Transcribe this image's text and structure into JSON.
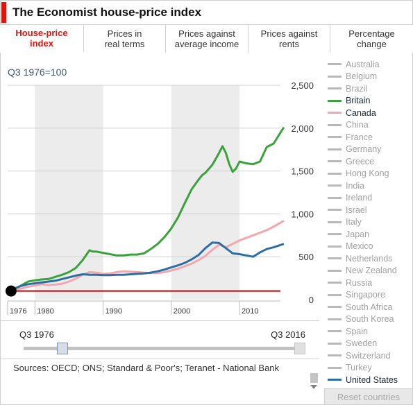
{
  "header": {
    "title": "The Economist house-price index"
  },
  "tabs": [
    {
      "label": "House-price\nindex",
      "active": true
    },
    {
      "label": "Prices in\nreal terms",
      "active": false
    },
    {
      "label": "Prices against\naverage income",
      "active": false
    },
    {
      "label": "Prices against\nrents",
      "active": false
    },
    {
      "label": "Percentage\nchange",
      "active": false
    }
  ],
  "subtitle": "Q3 1976=100",
  "slider": {
    "start_label": "Q3 1976",
    "end_label": "Q3 2016"
  },
  "sources": "Sources: OECD; ONS; Standard & Poor's; Teranet - National Bank",
  "reset_label": "Reset countries",
  "legend": [
    {
      "name": "Australia",
      "on": false
    },
    {
      "name": "Belgium",
      "on": false
    },
    {
      "name": "Brazil",
      "on": false
    },
    {
      "name": "Britain",
      "on": true
    },
    {
      "name": "Canada",
      "on": true
    },
    {
      "name": "China",
      "on": false
    },
    {
      "name": "France",
      "on": false
    },
    {
      "name": "Germany",
      "on": false
    },
    {
      "name": "Greece",
      "on": false
    },
    {
      "name": "Hong Kong",
      "on": false
    },
    {
      "name": "India",
      "on": false
    },
    {
      "name": "Ireland",
      "on": false
    },
    {
      "name": "Israel",
      "on": false
    },
    {
      "name": "Italy",
      "on": false
    },
    {
      "name": "Japan",
      "on": false
    },
    {
      "name": "Mexico",
      "on": false
    },
    {
      "name": "Netherlands",
      "on": false
    },
    {
      "name": "New Zealand",
      "on": false
    },
    {
      "name": "Russia",
      "on": false
    },
    {
      "name": "Singapore",
      "on": false
    },
    {
      "name": "South Africa",
      "on": false
    },
    {
      "name": "South Korea",
      "on": false
    },
    {
      "name": "Spain",
      "on": false
    },
    {
      "name": "Sweden",
      "on": false
    },
    {
      "name": "Switzerland",
      "on": false
    },
    {
      "name": "Turkey",
      "on": false
    },
    {
      "name": "United States",
      "on": true
    }
  ],
  "colors": {
    "Britain": "#3aa23a",
    "Canada": "#f3a6ad",
    "United States": "#2b6ea4",
    "baseline": "#c00000",
    "band": "#ececec",
    "grid": "#cfcfcf",
    "legend_off": "#b8b8b8"
  },
  "chart_data": {
    "type": "line",
    "xlim": [
      1976,
      2016
    ],
    "ylim": [
      0,
      2500
    ],
    "yticks": [
      "0",
      "500",
      "1,000",
      "1,500",
      "2,000",
      "2,500"
    ],
    "ytick_values": [
      0,
      500,
      1000,
      1500,
      2000,
      2500
    ],
    "xticks": [
      "1976",
      "1980",
      "1990",
      "2000",
      "2010"
    ],
    "xtick_values": [
      1976,
      1980,
      1990,
      2000,
      2010
    ],
    "baseline": 100,
    "start_marker": {
      "x": 1976.5,
      "y": 100
    },
    "bands": [
      [
        1980,
        1990
      ],
      [
        2000,
        2010
      ]
    ],
    "series": [
      {
        "name": "Britain",
        "x": [
          1976.5,
          1977,
          1978,
          1979,
          1980,
          1981,
          1982,
          1983,
          1984,
          1985,
          1986,
          1987,
          1988,
          1988.5,
          1989,
          1990,
          1991,
          1992,
          1993,
          1994,
          1995,
          1996,
          1997,
          1998,
          1999,
          2000,
          2001,
          2002,
          2003,
          2004,
          2004.5,
          2005,
          2006,
          2007,
          2007.5,
          2008,
          2008.5,
          2009,
          2009.5,
          2010,
          2011,
          2012,
          2013,
          2014,
          2015,
          2016.5
        ],
        "y": [
          100,
          125,
          165,
          210,
          225,
          235,
          240,
          265,
          290,
          320,
          370,
          460,
          575,
          560,
          560,
          545,
          530,
          515,
          515,
          525,
          525,
          540,
          590,
          650,
          730,
          830,
          960,
          1130,
          1290,
          1400,
          1450,
          1480,
          1570,
          1710,
          1790,
          1710,
          1580,
          1490,
          1530,
          1610,
          1590,
          1580,
          1610,
          1780,
          1820,
          2010
        ]
      },
      {
        "name": "Canada",
        "x": [
          1976.5,
          1977,
          1978,
          1979,
          1980,
          1981,
          1982,
          1983,
          1984,
          1985,
          1986,
          1987,
          1988,
          1989,
          1990,
          1991,
          1992,
          1993,
          1994,
          1995,
          1996,
          1997,
          1998,
          1999,
          2000,
          2001,
          2002,
          2003,
          2004,
          2005,
          2006,
          2007,
          2008,
          2009,
          2010,
          2011,
          2012,
          2013,
          2014,
          2015,
          2016.5
        ],
        "y": [
          100,
          110,
          130,
          150,
          165,
          180,
          170,
          175,
          185,
          210,
          245,
          290,
          320,
          315,
          300,
          305,
          320,
          330,
          325,
          320,
          315,
          310,
          310,
          320,
          340,
          360,
          390,
          420,
          460,
          510,
          580,
          640,
          610,
          650,
          690,
          720,
          750,
          780,
          810,
          850,
          920
        ]
      },
      {
        "name": "United States",
        "x": [
          1976.5,
          1977,
          1978,
          1979,
          1980,
          1981,
          1982,
          1983,
          1984,
          1985,
          1986,
          1987,
          1988,
          1989,
          1990,
          1991,
          1992,
          1993,
          1994,
          1995,
          1996,
          1997,
          1998,
          1999,
          2000,
          2001,
          2002,
          2003,
          2004,
          2005,
          2006,
          2007,
          2008,
          2009,
          2010,
          2011,
          2012,
          2013,
          2014,
          2015,
          2016.5
        ],
        "y": [
          100,
          130,
          160,
          180,
          190,
          200,
          210,
          220,
          240,
          260,
          280,
          295,
          290,
          290,
          285,
          285,
          290,
          290,
          295,
          300,
          305,
          315,
          330,
          350,
          375,
          400,
          430,
          470,
          520,
          600,
          665,
          660,
          600,
          540,
          530,
          515,
          500,
          550,
          590,
          610,
          650
        ]
      }
    ]
  }
}
